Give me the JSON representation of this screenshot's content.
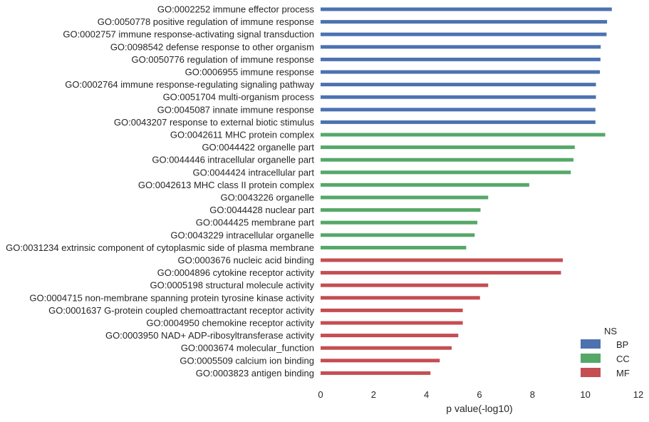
{
  "chart_data": {
    "type": "bar",
    "orientation": "horizontal",
    "xlabel": "p value(-log10)",
    "ylabel": "",
    "xlim": [
      0,
      12
    ],
    "xticks": [
      "0",
      "2",
      "4",
      "6",
      "8",
      "10",
      "12"
    ],
    "grid": false,
    "legend": {
      "title": "NS",
      "position": "bottom-right",
      "entries": [
        {
          "name": "BP",
          "color": "#4c72b0"
        },
        {
          "name": "CC",
          "color": "#55a868"
        },
        {
          "name": "MF",
          "color": "#c44e52"
        }
      ]
    },
    "categories": [
      "GO:0002252 immune effector process",
      "GO:0050778 positive regulation of immune response",
      "GO:0002757 immune response-activating signal transduction",
      "GO:0098542 defense response to other organism",
      "GO:0050776 regulation of immune response",
      "GO:0006955 immune response",
      "GO:0002764 immune response-regulating signaling pathway",
      "GO:0051704 multi-organism process",
      "GO:0045087 innate immune response",
      "GO:0043207 response to external biotic stimulus",
      "GO:0042611 MHC protein complex",
      "GO:0044422 organelle part",
      "GO:0044446 intracellular organelle part",
      "GO:0044424 intracellular part",
      "GO:0042613 MHC class II protein complex",
      "GO:0043226 organelle",
      "GO:0044428 nuclear part",
      "GO:0044425 membrane part",
      "GO:0043229 intracellular organelle",
      "GO:0031234 extrinsic component of cytoplasmic side of plasma membrane",
      "GO:0003676 nucleic acid binding",
      "GO:0004896 cytokine receptor activity",
      "GO:0005198 structural molecule activity",
      "GO:0004715 non-membrane spanning protein tyrosine kinase activity",
      "GO:0001637 G-protein coupled chemoattractant receptor activity",
      "GO:0004950 chemokine receptor activity",
      "GO:0003950 NAD+ ADP-ribosyltransferase activity",
      "GO:0003674 molecular_function",
      "GO:0005509 calcium ion binding",
      "GO:0003823 antigen binding"
    ],
    "values": [
      11.0,
      10.82,
      10.8,
      10.58,
      10.57,
      10.55,
      10.4,
      10.4,
      10.38,
      10.38,
      10.75,
      9.6,
      9.55,
      9.45,
      7.88,
      6.33,
      6.04,
      5.92,
      5.82,
      5.5,
      9.15,
      9.08,
      6.33,
      6.02,
      5.37,
      5.37,
      5.2,
      4.95,
      4.5,
      4.15
    ],
    "groups": [
      "BP",
      "BP",
      "BP",
      "BP",
      "BP",
      "BP",
      "BP",
      "BP",
      "BP",
      "BP",
      "CC",
      "CC",
      "CC",
      "CC",
      "CC",
      "CC",
      "CC",
      "CC",
      "CC",
      "CC",
      "MF",
      "MF",
      "MF",
      "MF",
      "MF",
      "MF",
      "MF",
      "MF",
      "MF",
      "MF"
    ]
  }
}
